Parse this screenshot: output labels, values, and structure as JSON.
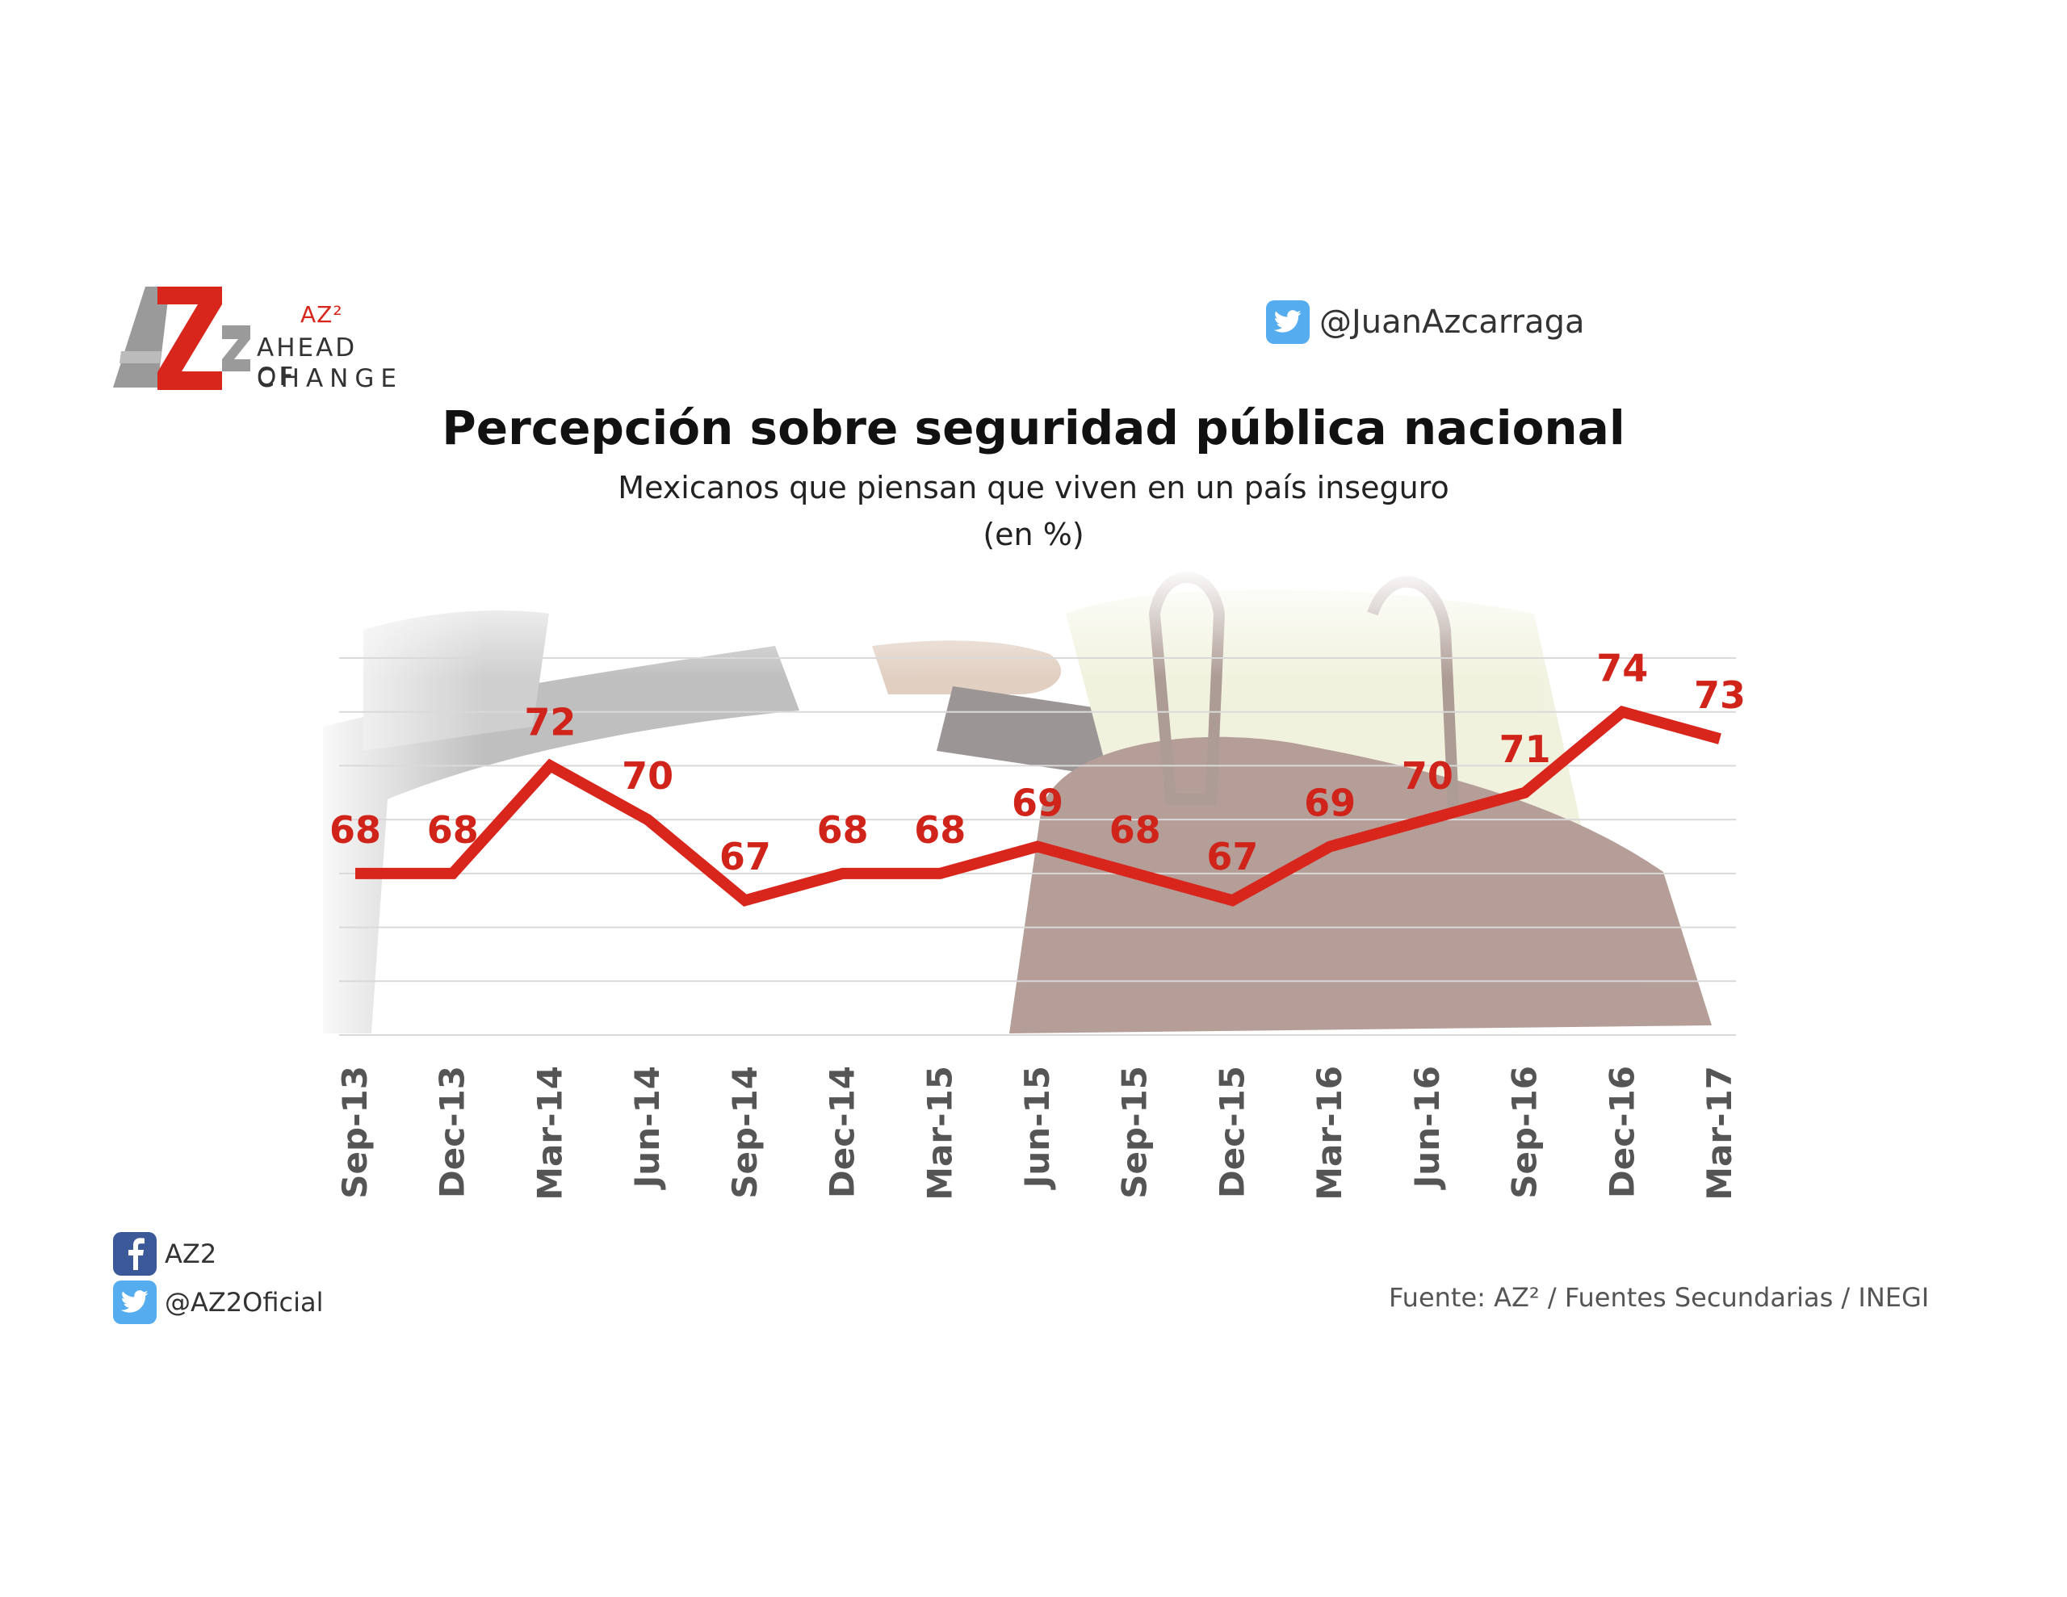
{
  "logo": {
    "mark": "AZ2",
    "superscript": "AZ²",
    "line1": "AHEAD OF",
    "line2": "CHANGE"
  },
  "header": {
    "twitter_icon": "twitter-icon",
    "twitter_handle": "@JuanAzcarraga"
  },
  "chart_data": {
    "type": "line",
    "title": "Percepción sobre seguridad pública nacional",
    "subtitle": "Mexicanos que piensan que viven en un país inseguro",
    "units": "(en %)",
    "categories": [
      "Sep-13",
      "Dec-13",
      "Mar-14",
      "Jun-14",
      "Sep-14",
      "Dec-14",
      "Mar-15",
      "Jun-15",
      "Sep-15",
      "Dec-15",
      "Mar-16",
      "Jun-16",
      "Sep-16",
      "Dec-16",
      "Mar-17"
    ],
    "values": [
      68,
      68,
      72,
      70,
      67,
      68,
      68,
      69,
      68,
      67,
      69,
      70,
      71,
      74,
      73
    ],
    "ylim": [
      62,
      76
    ],
    "grid": true,
    "line_color": "#d9261c",
    "label_color": "#d0241b"
  },
  "footer": {
    "facebook_icon": "facebook-icon",
    "facebook_label": "AZ2",
    "twitter_icon": "twitter-icon",
    "twitter_label": "@AZ2Oficial",
    "source": "Fuente: AZ² / Fuentes Secundarias / INEGI"
  }
}
